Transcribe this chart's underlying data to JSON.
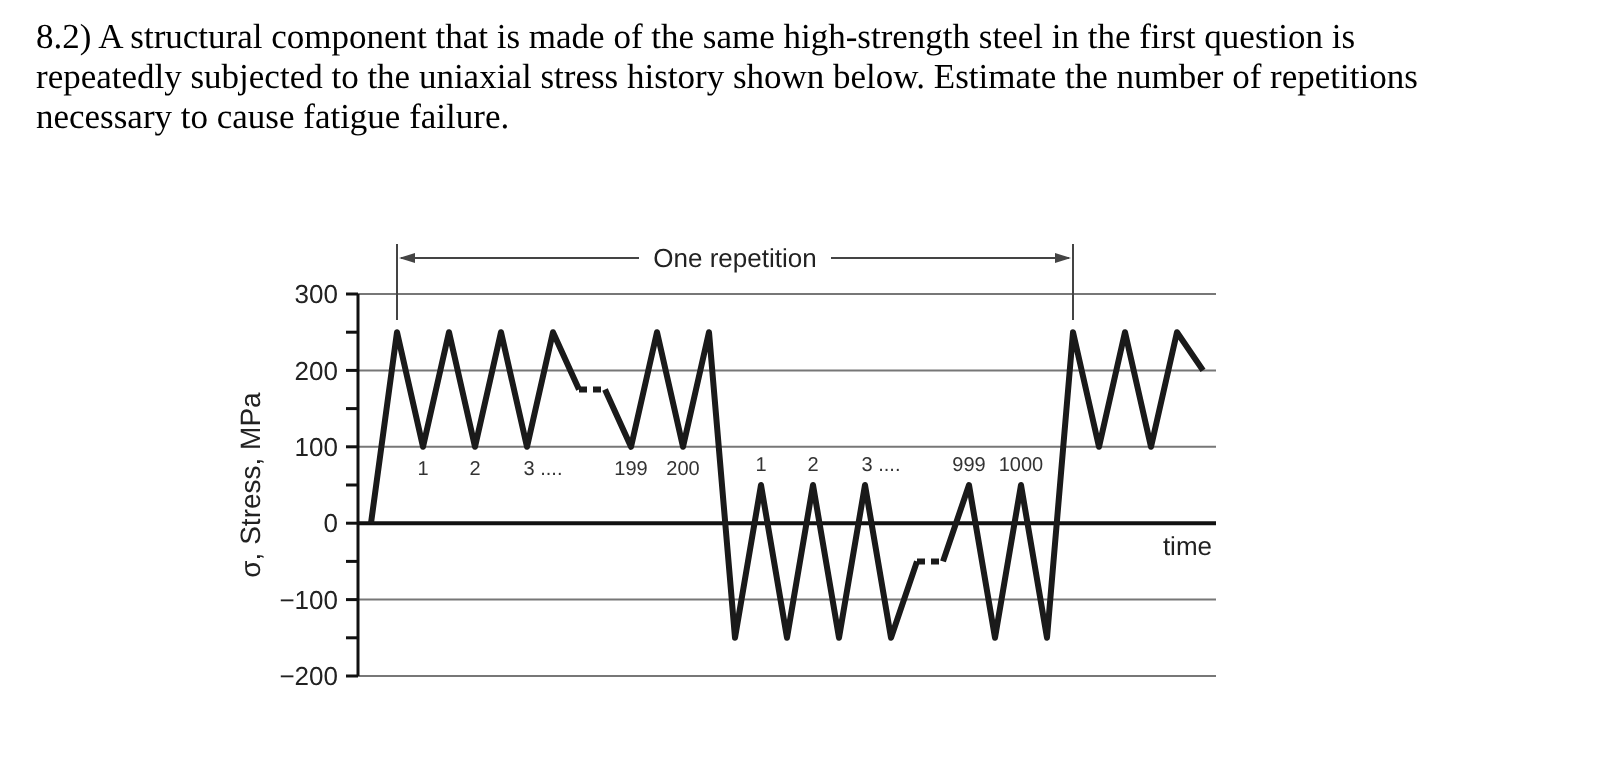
{
  "chart_data": {
    "type": "line",
    "title": "8.2) A structural component that is made of the same high-strength steel in the first question is repeatedly subjected to the uniaxial stress history shown below. Estimate the number of repetitions necessary to cause fatigue failure.",
    "xlabel": "time",
    "ylabel": "σ, Stress, MPa",
    "annotations": [
      "One repetition",
      "1",
      "2",
      "3 ....",
      "199",
      "200",
      "1",
      "2",
      "3 ....",
      "999",
      "1000"
    ],
    "categories": [
      null,
      null,
      null,
      null,
      null,
      null,
      null,
      null,
      null,
      null,
      null,
      null,
      null,
      null,
      null,
      null,
      null,
      null,
      null,
      null,
      null,
      null,
      null,
      null,
      null,
      null,
      null,
      null,
      null,
      null,
      null,
      null,
      null
    ],
    "ylim": [
      -200,
      300
    ],
    "yticks": [
      -200,
      {
        "value": -150,
        "label": null
      },
      -100,
      {
        "value": -50,
        "label": null
      },
      0,
      {
        "value": 50,
        "label": null
      },
      100,
      {
        "value": 150,
        "label": null
      },
      200,
      {
        "value": 250,
        "label": null
      },
      300
    ],
    "grid": "y",
    "marker": "none",
    "tick_labels": "y",
    "series": [
      {
        "color": "#1a1a1a",
        "line_style": "solid",
        "values": [
          0,
          250,
          100,
          250,
          100,
          250,
          100,
          250,
          175,
          null,
          null,
          null,
          null,
          null,
          null,
          null,
          null,
          null,
          null,
          null,
          null,
          null,
          null,
          null,
          null,
          null,
          null,
          null,
          null,
          null,
          null,
          null,
          null
        ]
      },
      {
        "color": "#1a1a1a",
        "line_style": "dotted",
        "values": [
          null,
          null,
          null,
          null,
          null,
          null,
          null,
          null,
          175,
          175,
          null,
          null,
          null,
          null,
          null,
          null,
          null,
          null,
          null,
          null,
          null,
          null,
          null,
          null,
          null,
          null,
          null,
          null,
          null,
          null,
          null,
          null,
          null
        ]
      },
      {
        "color": "#1a1a1a",
        "line_style": "solid",
        "values": [
          null,
          null,
          null,
          null,
          null,
          null,
          null,
          null,
          null,
          175,
          100,
          250,
          100,
          250,
          -150,
          50,
          -150,
          50,
          -150,
          50,
          -150,
          -50,
          null,
          null,
          null,
          null,
          null,
          null,
          null,
          null,
          null,
          null,
          null
        ]
      },
      {
        "color": "#1a1a1a",
        "line_style": "dotted",
        "values": [
          null,
          null,
          null,
          null,
          null,
          null,
          null,
          null,
          null,
          null,
          null,
          null,
          null,
          null,
          null,
          null,
          null,
          null,
          null,
          null,
          null,
          -50,
          -50,
          null,
          null,
          null,
          null,
          null,
          null,
          null,
          null,
          null,
          null
        ]
      },
      {
        "color": "#1a1a1a",
        "line_style": "solid",
        "values": [
          null,
          null,
          null,
          null,
          null,
          null,
          null,
          null,
          null,
          null,
          null,
          null,
          null,
          null,
          null,
          null,
          null,
          null,
          null,
          null,
          null,
          null,
          -50,
          50,
          -150,
          50,
          -150,
          250,
          100,
          250,
          100,
          250,
          200
        ]
      }
    ]
  }
}
